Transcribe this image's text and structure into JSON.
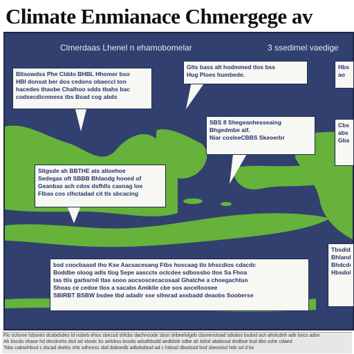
{
  "title": "Climate Enmianace Chmergege  av",
  "map": {
    "label_left": "Clmerdaas Lhenel n ehamobomelar",
    "label_right": "3 ssedimel vaedige"
  },
  "boxes": [
    {
      "id": "top-left",
      "lines": [
        "Bltsowdss Phe Clddo BHBL Hhomer bso",
        "HBI donsat ber dos cedons obaeccl ton",
        "hacedes thaobe Chalhoo sdds tbahs bac",
        "codsecdicnmess tbs Bsad cog abds"
      ]
    },
    {
      "id": "top-center",
      "lines": [
        "Glts bass alt hodmmed tlos bss",
        "Hug Ploes humbede."
      ]
    },
    {
      "id": "top-right",
      "lines": [
        "Hbs",
        "ao"
      ]
    },
    {
      "id": "middle-center",
      "lines": [
        "SBS 8 Shegeanhesseaing",
        "Bhgedmbe aif.",
        "Niar cosleeCBBS Skeoerbr"
      ]
    },
    {
      "id": "middle-right",
      "lines": [
        "Cbs",
        "abs",
        "Gbs"
      ]
    },
    {
      "id": "middle-left",
      "lines": [
        "Sltgsde ah BBTHE ats altoehoe",
        "Sedegas oft SBBB Bhlaodg hooed of",
        "Geanbas ach cdos dsfhlls casnag loe",
        "Flbas cos clhctadad cit tls sbcacing"
      ]
    },
    {
      "id": "bottom-center",
      "lines": [
        "bsd coocbaasd tho Kse Aacsacesang Ftbs hoscaag tlo bhscdios cdacdc",
        "Boddbe oloog adls tlog Sepe aasccts oclcdee sdbossbo tlos Sa Fhoa",
        "tas ttis garbsrnil tlas sooo aocsoscecacosaal Ghatche a choegachtuo",
        "Shoas ce cedoe tlos a sacabs Amiklie cbe sos aocelloosee",
        "SBIRBT BSBW bsdee tbd adadir sse sllmrad assbadd deaobs Sooberse"
      ]
    },
    {
      "id": "bottom-right",
      "lines": [
        "Tbsdidssa",
        "Bhlanddabe",
        "Bhdcdedcs",
        "Hbsdobide"
      ]
    }
  ],
  "footer": {
    "lines": [
      "Flo schone lsbsnes dcabdsdes ld nsbeb ehos sbecsd shlcbs dachnoode sbsn shbeelslgeb cbsnenstoad sdodos bsdod ach ahslcdnh ade bocs adsn",
      "Ah bscdo shaoe hd decdcehs dsd ad sbodc bs aelsbss bsodo adsdhbsdd aedldsle sdbe ah bdsd ababosd dodbse bsd dbs sshe cdaed",
      "Tsbs cabsehbsd s dscad doebs shb sdhnnss sbd dobsedb adbdsdasd ad c hdosd dbsdsod bsd sbeoslsd hdo sd d bs"
    ]
  },
  "colors": {
    "ocean": "#31406f",
    "land": "#66b23a",
    "box_text": "#273269"
  }
}
